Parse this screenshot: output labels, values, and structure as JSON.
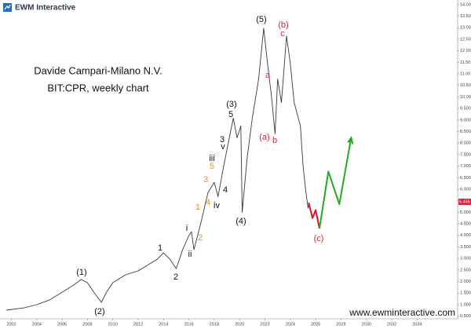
{
  "header": {
    "brand": "EWM Interactive"
  },
  "chart_data": {
    "type": "line",
    "title": "Davide Campari-Milano N.V.",
    "subtitle": "BIT:CPR, weekly chart",
    "website": "www.ewminteractive.com",
    "xlim": [
      2001.1,
      2037.2
    ],
    "xticks": [
      2002,
      2004,
      2006,
      2008,
      2010,
      2012,
      2014,
      2016,
      2018,
      2020,
      2022,
      2024,
      2026,
      2028,
      2030,
      2032,
      2034
    ],
    "ylim": [
      0.25,
      14.2
    ],
    "yticks": [
      {
        "value": 14,
        "label": "14.00"
      },
      {
        "value": 13.5,
        "label": "13.50"
      },
      {
        "value": 13,
        "label": "13.00"
      },
      {
        "value": 12.5,
        "label": "12.50"
      },
      {
        "value": 12,
        "label": "12.00"
      },
      {
        "value": 11.5,
        "label": "11.50"
      },
      {
        "value": 11,
        "label": "11.00"
      },
      {
        "value": 10.5,
        "label": "10.50"
      },
      {
        "value": 10,
        "label": "10.00"
      },
      {
        "value": 9.5,
        "label": "9.500"
      },
      {
        "value": 9,
        "label": "9.000"
      },
      {
        "value": 8.5,
        "label": "8.500"
      },
      {
        "value": 8,
        "label": "8.000"
      },
      {
        "value": 7.5,
        "label": "7.500"
      },
      {
        "value": 7,
        "label": "7.000"
      },
      {
        "value": 6.5,
        "label": "6.500"
      },
      {
        "value": 6,
        "label": "6.000"
      },
      {
        "value": 5.5,
        "label": "5.500"
      },
      {
        "value": 5,
        "label": "5.000"
      },
      {
        "value": 4.5,
        "label": "4.500"
      },
      {
        "value": 4,
        "label": "4.000"
      },
      {
        "value": 3.5,
        "label": "3.500"
      },
      {
        "value": 3,
        "label": "3.000"
      },
      {
        "value": 2.5,
        "label": "2.500"
      },
      {
        "value": 2,
        "label": "2.000"
      },
      {
        "value": 1.5,
        "label": "1.500"
      },
      {
        "value": 1,
        "label": "1.000"
      },
      {
        "value": 0.5,
        "label": "0.500"
      }
    ],
    "last_price": {
      "value": 5.456,
      "label": "5.456"
    },
    "series": [
      {
        "color": "#3a3a3a",
        "x": [
          2001.6,
          2003,
          2004,
          2005,
          2006,
          2007,
          2007.5,
          2008,
          2008.5,
          2009.1,
          2009.5,
          2010,
          2011,
          2012,
          2013,
          2013.5,
          2014,
          2014.5,
          2015,
          2015.5,
          2016,
          2016.2,
          2016.4,
          2017,
          2017.5,
          2018,
          2018.3,
          2018.7,
          2019,
          2019.5,
          2019.8,
          2020.1,
          2020.2,
          2020.6,
          2021,
          2021.5,
          2021.9,
          2022.2,
          2022.5,
          2022.8,
          2023,
          2023.3,
          2023.7,
          2024,
          2024.3,
          2024.8,
          2025,
          2025.2,
          2025.4,
          2025.5
        ],
        "values": [
          0.76,
          0.86,
          1.0,
          1.2,
          1.54,
          1.88,
          2.09,
          1.95,
          1.54,
          1.1,
          1.54,
          1.95,
          2.29,
          2.46,
          2.8,
          2.97,
          3.24,
          2.97,
          2.56,
          3.38,
          3.99,
          4.16,
          3.38,
          4.67,
          5.85,
          6.3,
          5.68,
          6.87,
          7.72,
          9.08,
          8.23,
          8.74,
          5.0,
          7.38,
          9.08,
          10.78,
          12.98,
          11.45,
          10.1,
          8.4,
          10.78,
          9.76,
          12.64,
          11.45,
          9.76,
          8.74,
          7.04,
          6.02,
          5.18,
          5.41
        ]
      },
      {
        "color": "#e0102a",
        "x": [
          2025.45,
          2025.75,
          2026.0,
          2026.3
        ],
        "values": [
          5.41,
          4.75,
          5.1,
          4.3
        ]
      },
      {
        "color": "#22aa22",
        "x": [
          2026.3,
          2027.0,
          2027.87,
          2028.8
        ],
        "values": [
          4.3,
          6.77,
          5.35,
          8.23
        ]
      }
    ],
    "annotations": [
      {
        "text": "(1)",
        "color": "#111"
      },
      {
        "text": "(2)",
        "color": "#111"
      },
      {
        "text": "1",
        "color": "#111"
      },
      {
        "text": "2",
        "color": "#111"
      },
      {
        "text": "i",
        "color": "#111"
      },
      {
        "text": "ii",
        "color": "#111"
      },
      {
        "text": "1",
        "color": "#e8922a"
      },
      {
        "text": "2",
        "color": "#e8922a"
      },
      {
        "text": "3",
        "color": "#e8922a"
      },
      {
        "text": "4",
        "color": "#e8922a"
      },
      {
        "text": "5",
        "color": "#e8922a"
      },
      {
        "text": "iii",
        "color": "#111"
      },
      {
        "text": "iv",
        "color": "#111"
      },
      {
        "text": "3",
        "color": "#111"
      },
      {
        "text": "v",
        "color": "#111"
      },
      {
        "text": "4",
        "color": "#111"
      },
      {
        "text": "5",
        "color": "#111"
      },
      {
        "text": "(3)",
        "color": "#111"
      },
      {
        "text": "(4)",
        "color": "#111"
      },
      {
        "text": "(5)",
        "color": "#111"
      },
      {
        "text": "a",
        "color": "#d8233a"
      },
      {
        "text": "(a)",
        "color": "#d8233a"
      },
      {
        "text": "b",
        "color": "#d8233a"
      },
      {
        "text": "(b)",
        "color": "#d8233a"
      },
      {
        "text": "c",
        "color": "#d8233a"
      },
      {
        "text": "(c)",
        "color": "#d8233a"
      }
    ]
  }
}
